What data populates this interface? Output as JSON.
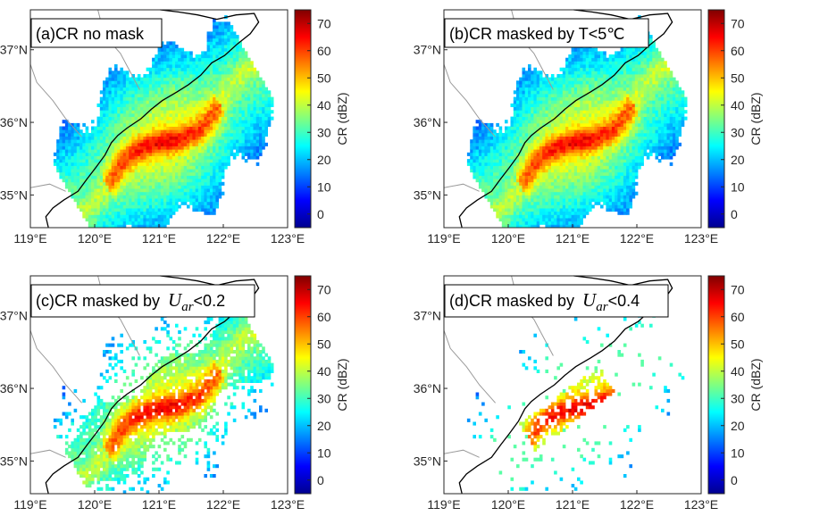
{
  "chart_data": [
    {
      "type": "heatmap",
      "title": "(a)CR no mask",
      "label_parts": [
        "(a)CR no mask"
      ],
      "mask": "none",
      "xticks": [
        "119°E",
        "120°E",
        "121°E",
        "122°E",
        "123°E"
      ],
      "yticks": [
        "35°N",
        "36°N",
        "37°N"
      ],
      "xlim": [
        119,
        123
      ],
      "ylim": [
        34.55,
        37.55
      ],
      "colorbar": {
        "label": "CR (dBZ)",
        "ticks": [
          "0",
          "10",
          "20",
          "30",
          "40",
          "50",
          "60",
          "70"
        ],
        "range": [
          -5,
          75
        ]
      }
    },
    {
      "type": "heatmap",
      "title": "(b)CR masked by T<5℃",
      "label_parts": [
        "(b)CR masked by T<5℃"
      ],
      "mask": "temperature",
      "xticks": [
        "119°E",
        "120°E",
        "121°E",
        "122°E",
        "123°E"
      ],
      "yticks": [
        "35°N",
        "36°N",
        "37°N"
      ],
      "xlim": [
        119,
        123
      ],
      "ylim": [
        34.55,
        37.55
      ],
      "colorbar": {
        "label": "CR (dBZ)",
        "ticks": [
          "0",
          "10",
          "20",
          "30",
          "40",
          "50",
          "60",
          "70"
        ],
        "range": [
          -5,
          75
        ]
      }
    },
    {
      "type": "heatmap",
      "title": "(c)CR masked by Uar<0.2",
      "label_parts": [
        "(c)CR masked by ",
        "U",
        "ar",
        "<0.2"
      ],
      "mask": "uar_0.2",
      "xticks": [
        "119°E",
        "120°E",
        "121°E",
        "122°E",
        "123°E"
      ],
      "yticks": [
        "35°N",
        "36°N",
        "37°N"
      ],
      "xlim": [
        119,
        123
      ],
      "ylim": [
        34.55,
        37.55
      ],
      "colorbar": {
        "label": "CR (dBZ)",
        "ticks": [
          "0",
          "10",
          "20",
          "30",
          "40",
          "50",
          "60",
          "70"
        ],
        "range": [
          -5,
          75
        ]
      }
    },
    {
      "type": "heatmap",
      "title": "(d)CR masked by Uar<0.4",
      "label_parts": [
        "(d)CR masked by ",
        "U",
        "ar",
        "<0.4"
      ],
      "mask": "uar_0.4",
      "xticks": [
        "119°E",
        "120°E",
        "121°E",
        "122°E",
        "123°E"
      ],
      "yticks": [
        "35°N",
        "36°N",
        "37°N"
      ],
      "xlim": [
        119,
        123
      ],
      "ylim": [
        34.55,
        37.55
      ],
      "colorbar": {
        "label": "CR (dBZ)",
        "ticks": [
          "0",
          "10",
          "20",
          "30",
          "40",
          "50",
          "60",
          "70"
        ],
        "range": [
          -5,
          75
        ]
      }
    }
  ],
  "colormap": [
    "#00008f",
    "#0000ff",
    "#0080ff",
    "#00ffff",
    "#80ff80",
    "#ffff00",
    "#ff8000",
    "#ff0000",
    "#800000"
  ]
}
